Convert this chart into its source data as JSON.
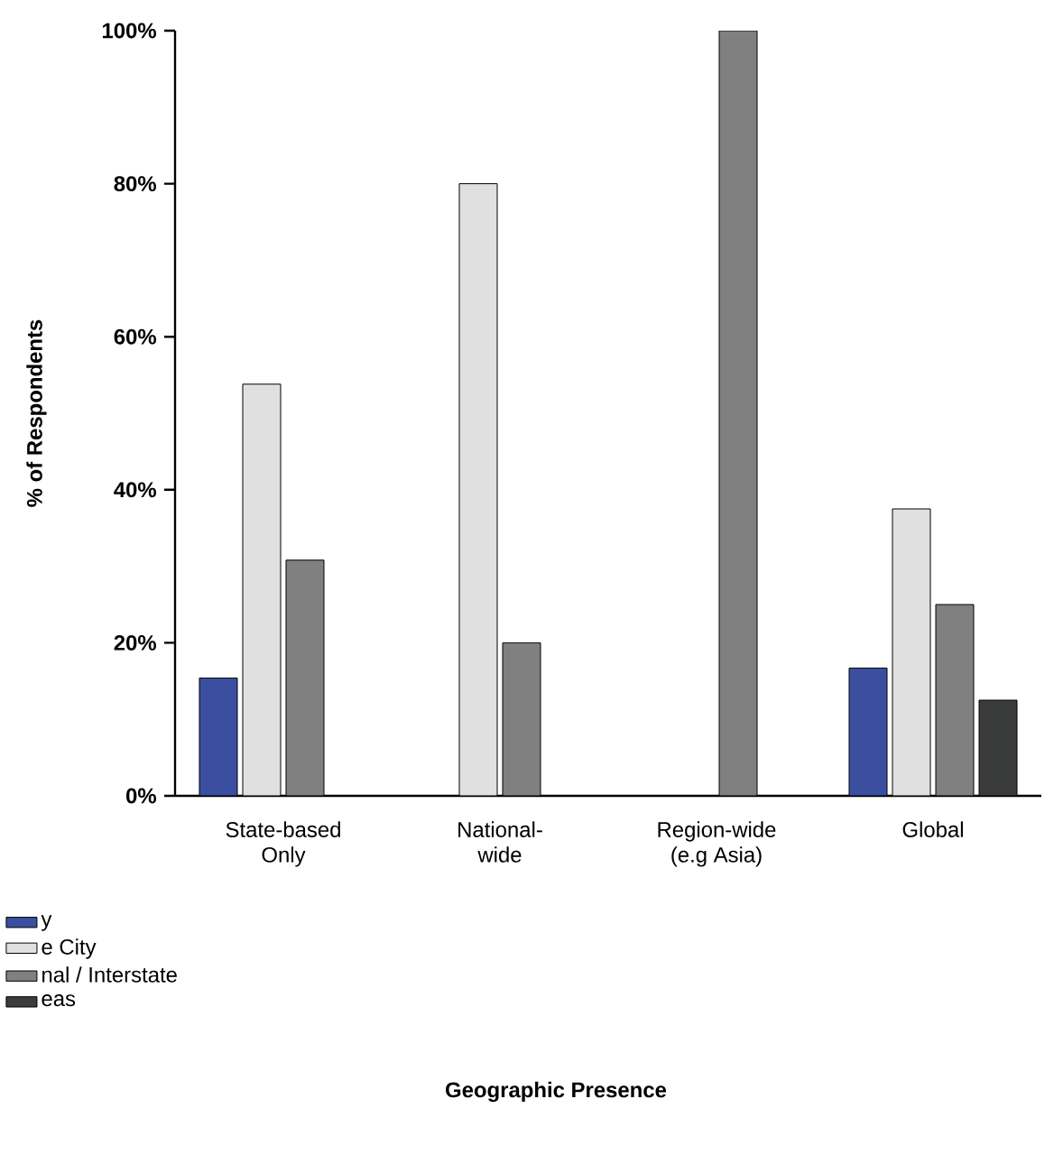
{
  "chart_data": {
    "type": "bar",
    "annotations": [
      "Geographic Presence"
    ],
    "ylabel": "% of Respondents",
    "categories": [
      "State-based Only",
      "National-wide",
      "Region-wide (e.g Asia)",
      "Global"
    ],
    "series": [
      {
        "name": "y",
        "color": "#3a4fa0",
        "values": [
          15.4,
          null,
          null,
          16.7
        ]
      },
      {
        "name": "e City",
        "color": "#e0e0e0",
        "values": [
          53.8,
          80,
          null,
          37.5
        ]
      },
      {
        "name": "nal / Interstate",
        "color": "#808080",
        "values": [
          30.8,
          20,
          100,
          25
        ]
      },
      {
        "name": "eas",
        "color": "#3a3c3b",
        "values": [
          null,
          null,
          null,
          12.5
        ]
      }
    ],
    "ylim": [
      0,
      100
    ],
    "yticks": [
      {
        "value": 0,
        "label": "0%"
      },
      {
        "value": 20,
        "label": "20%"
      },
      {
        "value": 40,
        "label": "40%"
      },
      {
        "value": 60,
        "label": "60%"
      },
      {
        "value": 80,
        "label": "80%"
      },
      {
        "value": 100,
        "label": "100%"
      }
    ],
    "grid": false,
    "legend": "bottom left"
  }
}
